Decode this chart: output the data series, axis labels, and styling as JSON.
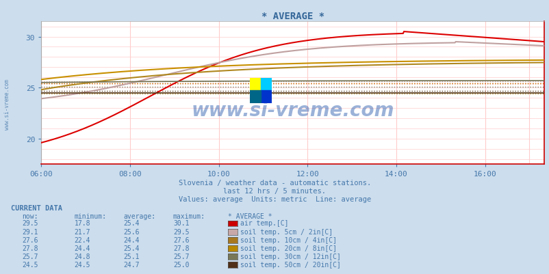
{
  "title": "* AVERAGE *",
  "bg_color": "#ccdded",
  "plot_bg_color": "#ffffff",
  "grid_color": "#dddddd",
  "text_color": "#4477aa",
  "title_color": "#336699",
  "xlim": [
    0,
    680
  ],
  "ylim": [
    17.5,
    31.5
  ],
  "yticks": [
    20,
    25,
    30
  ],
  "xtick_labels": [
    "06:00",
    "08:00",
    "10:00",
    "12:00",
    "14:00",
    "16:00"
  ],
  "xtick_positions": [
    0,
    120,
    240,
    360,
    480,
    600
  ],
  "subtitle1": "Slovenia / weather data - automatic stations.",
  "subtitle2": "last 12 hrs / 5 minutes.",
  "subtitle3": "Values: average  Units: metric  Line: average",
  "watermark": "www.si-vreme.com",
  "series_colors": [
    "#dd0000",
    "#c0a0a0",
    "#b08820",
    "#c89000",
    "#707050",
    "#503010"
  ],
  "series_avg": [
    25.4,
    25.6,
    24.4,
    25.4,
    25.1,
    24.7
  ],
  "series_avg_colors": [
    "#dd0000",
    "#c0a0a0",
    "#b08820",
    "#c89000",
    "#707050",
    "#503010"
  ],
  "swatch_colors": [
    "#cc0000",
    "#c8a8a8",
    "#a87820",
    "#b88800",
    "#787858",
    "#503018"
  ],
  "table_headers": [
    "now:",
    "minimum:",
    "average:",
    "maximum:",
    "* AVERAGE *"
  ],
  "table_rows": [
    {
      "now": "29.5",
      "min": "17.8",
      "avg": "25.4",
      "max": "30.1",
      "label": "air temp.[C]"
    },
    {
      "now": "29.1",
      "min": "21.7",
      "avg": "25.6",
      "max": "29.5",
      "label": "soil temp. 5cm / 2in[C]"
    },
    {
      "now": "27.6",
      "min": "22.4",
      "avg": "24.4",
      "max": "27.6",
      "label": "soil temp. 10cm / 4in[C]"
    },
    {
      "now": "27.8",
      "min": "24.4",
      "avg": "25.4",
      "max": "27.8",
      "label": "soil temp. 20cm / 8in[C]"
    },
    {
      "now": "25.7",
      "min": "24.8",
      "avg": "25.1",
      "max": "25.7",
      "label": "soil temp. 30cm / 12in[C]"
    },
    {
      "now": "24.5",
      "min": "24.5",
      "avg": "24.7",
      "max": "25.0",
      "label": "soil temp. 50cm / 20in[C]"
    }
  ]
}
